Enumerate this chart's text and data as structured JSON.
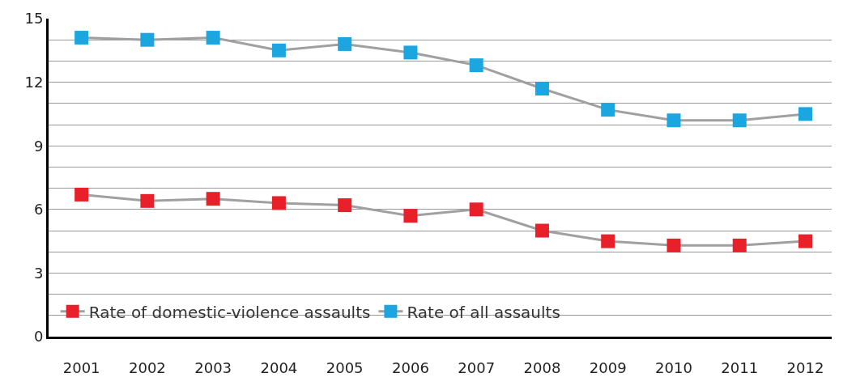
{
  "chart_data": {
    "type": "line",
    "categories": [
      "2001",
      "2002",
      "2003",
      "2004",
      "2005",
      "2006",
      "2007",
      "2008",
      "2009",
      "2010",
      "2011",
      "2012"
    ],
    "series": [
      {
        "name": "Rate of domestic-violence assaults",
        "color": "#e8202a",
        "values": [
          6.7,
          6.4,
          6.5,
          6.3,
          6.2,
          5.7,
          6.0,
          5.0,
          4.5,
          4.3,
          4.3,
          4.5
        ]
      },
      {
        "name": "Rate of all assaults",
        "color": "#1ba6e0",
        "values": [
          14.1,
          14.0,
          14.1,
          13.5,
          13.8,
          13.4,
          12.8,
          11.7,
          10.7,
          10.2,
          10.2,
          10.5
        ]
      }
    ],
    "ylim": [
      0,
      15
    ],
    "yticks": [
      0,
      {
        "value": 1,
        "label": null
      },
      {
        "value": 2,
        "label": null
      },
      3,
      {
        "value": 4,
        "label": null
      },
      {
        "value": 5,
        "label": null
      },
      6,
      {
        "value": 7,
        "label": null
      },
      {
        "value": 8,
        "label": null
      },
      9,
      {
        "value": 10,
        "label": null
      },
      {
        "value": 11,
        "label": null
      },
      12,
      {
        "value": 13,
        "label": null
      },
      {
        "value": 14,
        "label": null
      },
      15
    ],
    "grid": "y",
    "legend": "bottom left",
    "marker": "square",
    "line_style": "solid"
  }
}
